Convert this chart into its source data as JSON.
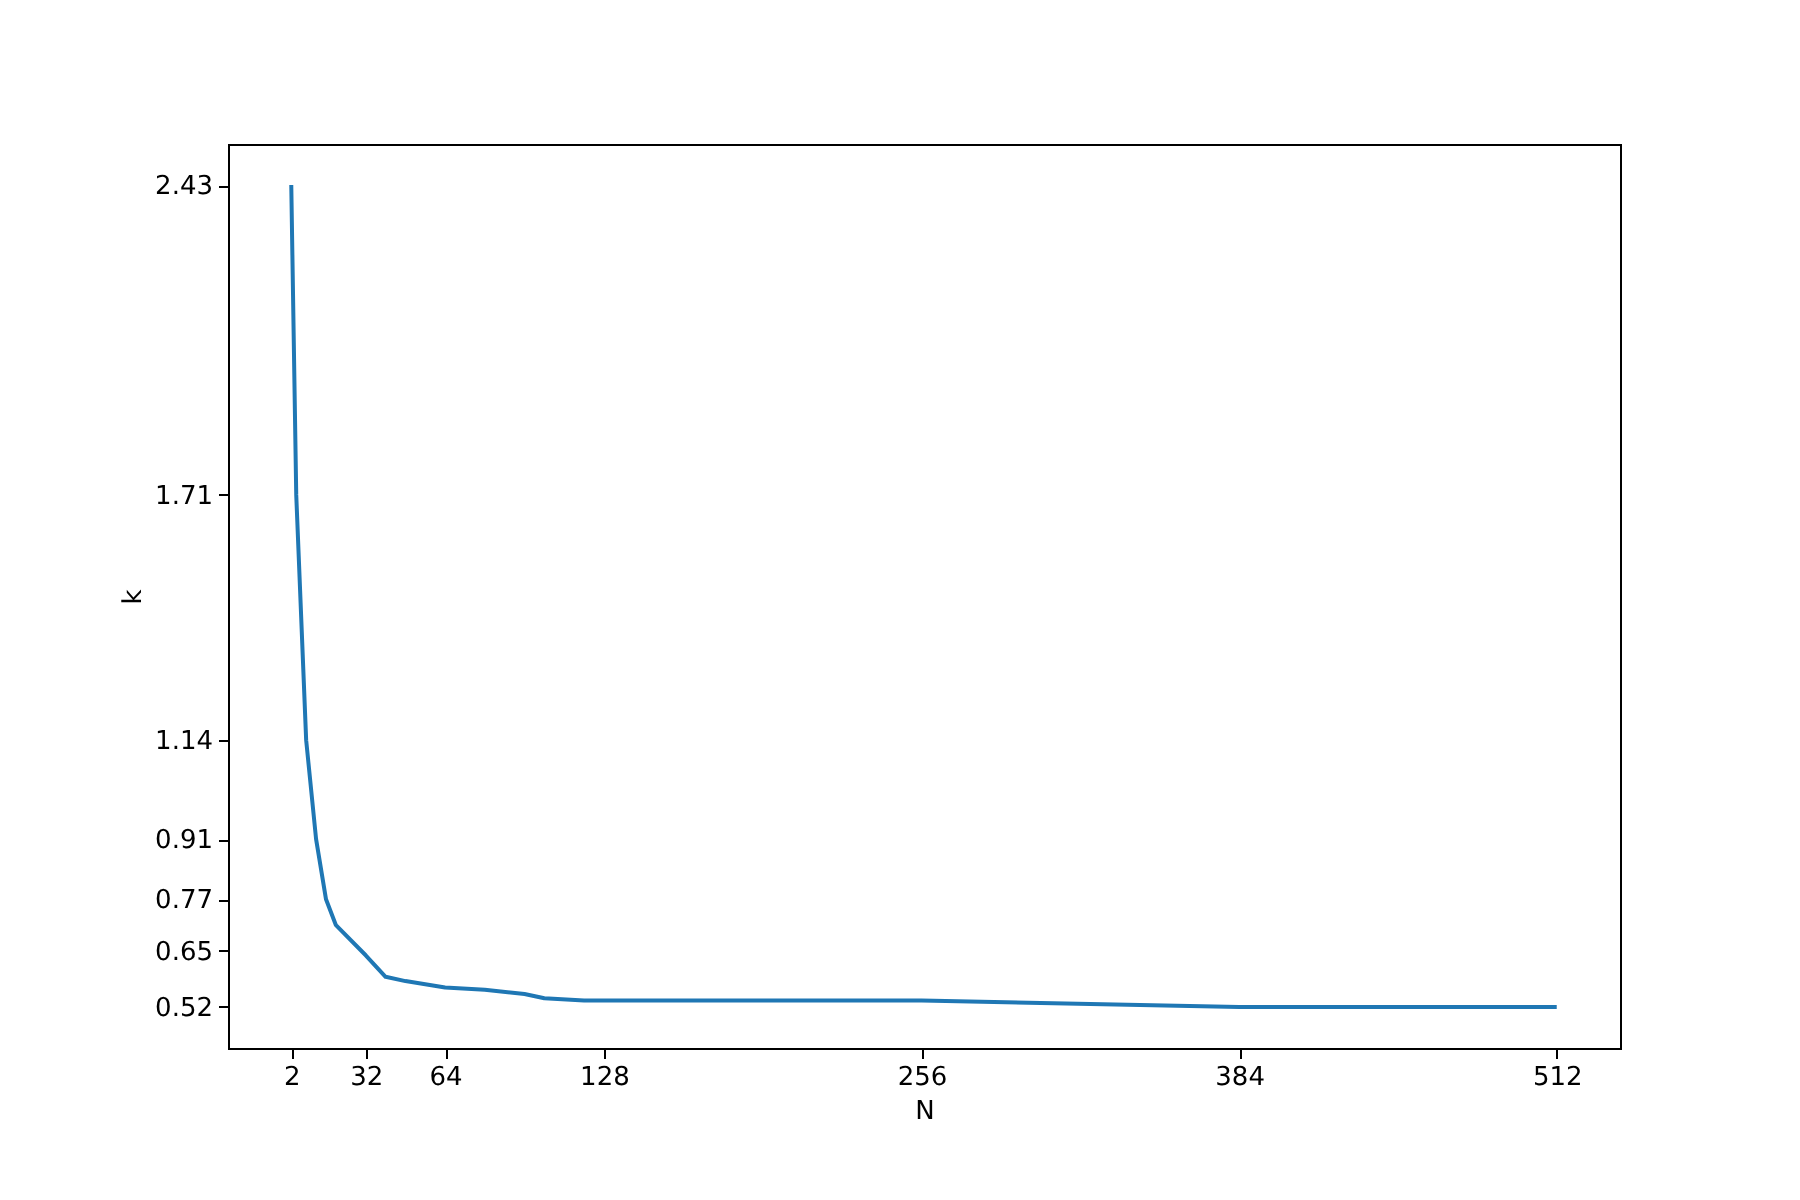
{
  "chart_data": {
    "type": "line",
    "xlabel": "N",
    "ylabel": "k",
    "x": [
      2,
      4,
      8,
      12,
      16,
      20,
      32,
      40,
      48,
      64,
      80,
      96,
      104,
      120,
      256,
      384,
      512
    ],
    "series": [
      {
        "color": "#1f77b4",
        "values": [
          2.43,
          1.71,
          1.14,
          0.91,
          0.77,
          0.71,
          0.64,
          0.59,
          0.58,
          0.565,
          0.56,
          0.55,
          0.54,
          0.535,
          0.535,
          0.52,
          0.52
        ]
      }
    ],
    "xlim": [
      -23.5,
      537.5
    ],
    "ylim": [
      0.4245,
      2.5255
    ],
    "xticks": [
      2,
      32,
      64,
      128,
      256,
      384,
      512
    ],
    "yticks": [
      0.52,
      0.65,
      0.77,
      0.91,
      1.14,
      1.71,
      2.43
    ],
    "grid": false,
    "legend": false,
    "marker": "none",
    "line_style": "solid"
  }
}
